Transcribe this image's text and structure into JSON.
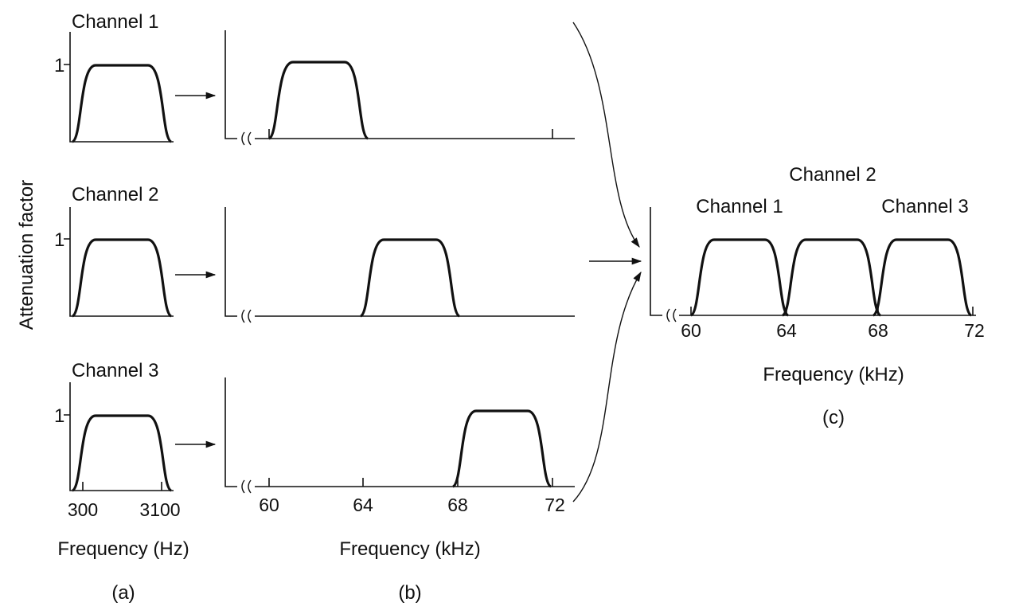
{
  "y_axis_label": "Attenuation factor",
  "panel_a": {
    "channels": [
      {
        "title": "Channel 1",
        "unity_label": "1"
      },
      {
        "title": "Channel 2",
        "unity_label": "1"
      },
      {
        "title": "Channel 3",
        "unity_label": "1"
      }
    ],
    "tick_low": "300",
    "tick_high": "3100",
    "xlabel": "Frequency (Hz)",
    "caption": "(a)"
  },
  "panel_b": {
    "ticks": [
      "60",
      "64",
      "68",
      "72"
    ],
    "xlabel": "Frequency (kHz)",
    "caption": "(b)"
  },
  "panel_c": {
    "channel_labels": [
      "Channel 1",
      "Channel 2",
      "Channel 3"
    ],
    "ticks": [
      "60",
      "64",
      "68",
      "72"
    ],
    "xlabel": "Frequency (kHz)",
    "caption": "(c)"
  }
}
